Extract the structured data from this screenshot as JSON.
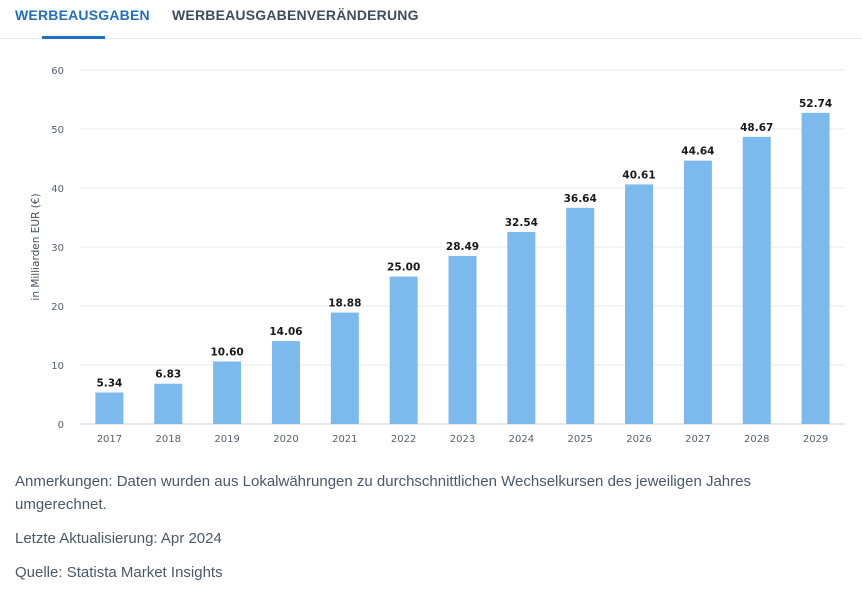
{
  "tabs": {
    "active_label": "WERBEAUSGABEN",
    "inactive_label": "WERBEAUSGABENVERÄNDERUNG"
  },
  "colors": {
    "bar": "#7cb9ec",
    "accent": "#1f6fc2"
  },
  "chart_data": {
    "type": "bar",
    "categories": [
      "2017",
      "2018",
      "2019",
      "2020",
      "2021",
      "2022",
      "2023",
      "2024",
      "2025",
      "2026",
      "2027",
      "2028",
      "2029"
    ],
    "values": [
      5.34,
      6.83,
      10.6,
      14.06,
      18.88,
      25.0,
      28.49,
      32.54,
      36.64,
      40.61,
      44.64,
      48.67,
      52.74
    ],
    "value_labels": [
      "5.34",
      "6.83",
      "10.60",
      "14.06",
      "18.88",
      "25.00",
      "28.49",
      "32.54",
      "36.64",
      "40.61",
      "44.64",
      "48.67",
      "52.74"
    ],
    "ylabel": "in Milliarden EUR (€)",
    "xlabel": "",
    "ylim": [
      0,
      60
    ],
    "yticks": [
      "0",
      "10",
      "20",
      "30",
      "40",
      "50",
      "60"
    ],
    "grid": true
  },
  "notes": {
    "remarks": "Anmerkungen: Daten wurden aus Lokalwährungen zu durchschnittlichen Wechselkursen des jeweiligen Jahres umgerechnet.",
    "updated": "Letzte Aktualisierung: Apr 2024",
    "source": "Quelle: Statista Market Insights"
  }
}
